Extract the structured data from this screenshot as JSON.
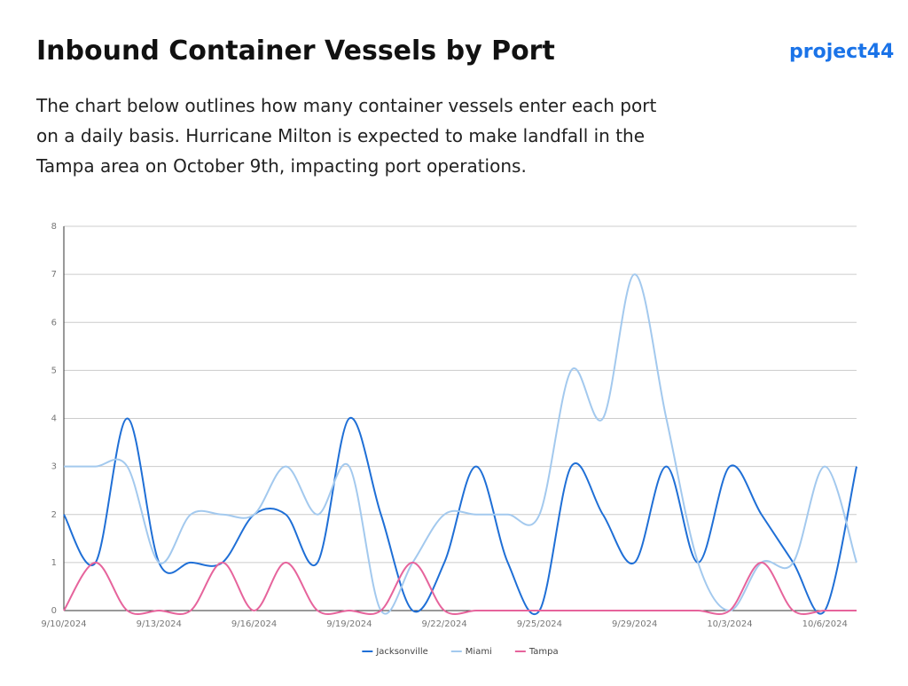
{
  "chart_data": {
    "type": "line",
    "title": "Inbound Container Vessels by Port",
    "logo": "project44",
    "subtitle": [
      "The chart below outlines how many container vessels enter each port",
      "on a daily basis. Hurricane Milton is expected to make landfall in the",
      "Tampa area on October 9th, impacting port operations."
    ],
    "categories": [
      "9/10/2024",
      null,
      null,
      "9/13/2024",
      null,
      null,
      "9/16/2024",
      null,
      null,
      "9/19/2024",
      null,
      null,
      "9/22/2024",
      null,
      null,
      "9/25/2024",
      null,
      null,
      "9/29/2024",
      null,
      null,
      "10/3/2024",
      null,
      null,
      "10/6/2024",
      null
    ],
    "series": [
      {
        "name": "Jacksonville",
        "color": "#1f6fd6",
        "values": [
          2,
          1,
          4,
          1,
          1,
          1,
          2,
          2,
          1,
          4,
          2,
          0,
          1,
          3,
          1,
          0,
          3,
          2,
          1,
          3,
          1,
          3,
          2,
          1,
          0,
          3
        ]
      },
      {
        "name": "Miami",
        "color": "#a3c9ee",
        "values": [
          3,
          3,
          3,
          1,
          2,
          2,
          2,
          3,
          2,
          3,
          0,
          1,
          2,
          2,
          2,
          2,
          5,
          4,
          7,
          4,
          1,
          0,
          1,
          1,
          3,
          1
        ]
      },
      {
        "name": "Tampa",
        "color": "#e6649c",
        "values": [
          0,
          1,
          0,
          0,
          0,
          1,
          0,
          1,
          0,
          0,
          0,
          1,
          0,
          0,
          0,
          0,
          0,
          0,
          0,
          0,
          0,
          0,
          1,
          0,
          0,
          0
        ]
      }
    ],
    "ylim": [
      0,
      8
    ],
    "yticks": [
      0,
      1,
      2,
      3,
      4,
      5,
      6,
      7,
      8
    ],
    "grid": true,
    "legend": "bottom"
  }
}
